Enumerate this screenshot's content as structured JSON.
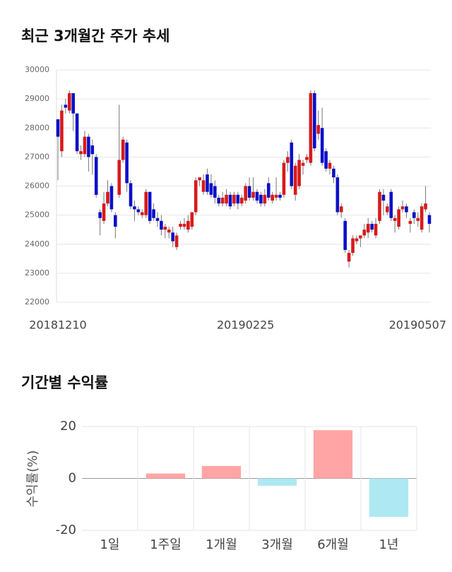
{
  "chart_data": [
    {
      "type": "candlestick",
      "title": "최근 3개월간 주가 추세",
      "categories": [
        "20181210",
        null,
        null,
        null,
        null,
        null,
        null,
        null,
        null,
        null,
        null,
        null,
        null,
        null,
        null,
        null,
        null,
        null,
        null,
        null,
        null,
        null,
        null,
        null,
        null,
        null,
        null,
        null,
        null,
        null,
        null,
        null,
        null,
        null,
        null,
        null,
        null,
        null,
        null,
        null,
        null,
        null,
        null,
        null,
        null,
        null,
        null,
        null,
        null,
        "20190225",
        null,
        null,
        null,
        null,
        null,
        null,
        null,
        null,
        null,
        null,
        null,
        null,
        null,
        null,
        null,
        null,
        null,
        null,
        null,
        null,
        null,
        null,
        null,
        null,
        null,
        null,
        null,
        null,
        null,
        null,
        null,
        null,
        null,
        null,
        null,
        null,
        null,
        null,
        null,
        null,
        null,
        null,
        null,
        null,
        null,
        null,
        null,
        "20190507"
      ],
      "open": [
        28300,
        27200,
        28800,
        28600,
        29200,
        28500,
        27100,
        27100,
        27700,
        27400,
        27000,
        25100,
        24800,
        25400,
        26000,
        25000,
        25700,
        26900,
        27500,
        26100,
        25300,
        25200,
        25000,
        25000,
        25800,
        25200,
        24900,
        24800,
        24500,
        24400,
        24400,
        23900,
        24600,
        24600,
        24500,
        24600,
        25100,
        26200,
        25800,
        26400,
        26100,
        26000,
        25600,
        25400,
        25400,
        25700,
        25400,
        25700,
        25400,
        25500,
        26000,
        25600,
        25800,
        25700,
        25400,
        26100,
        25500,
        25600,
        25700,
        25700,
        26800,
        27500,
        25700,
        26000,
        26700,
        26900,
        26800,
        29200,
        27800,
        28000,
        27200,
        26600,
        26600,
        26300,
        25100,
        24800,
        23400,
        23700,
        24100,
        24200,
        24300,
        24400,
        24700,
        24300,
        24800,
        25700,
        25100,
        25800,
        24800,
        24600,
        25200,
        25300,
        24700,
        25100,
        24800,
        24500,
        25200,
        25000
      ],
      "high": [
        28300,
        28800,
        29000,
        29300,
        29200,
        28500,
        27400,
        27900,
        27800,
        27600,
        27100,
        25200,
        25800,
        26200,
        26100,
        25100,
        28800,
        27700,
        27600,
        26200,
        25500,
        25300,
        25200,
        25900,
        25800,
        25400,
        25100,
        25000,
        24700,
        24600,
        24600,
        24400,
        24800,
        24900,
        25000,
        25100,
        26300,
        26300,
        26400,
        26600,
        26400,
        26200,
        25700,
        25800,
        25900,
        25800,
        25800,
        25800,
        25700,
        26100,
        26300,
        26300,
        25900,
        25800,
        25900,
        26300,
        25800,
        26300,
        25800,
        26900,
        27200,
        27600,
        26800,
        27100,
        26900,
        27100,
        29300,
        29300,
        28600,
        28700,
        27300,
        26900,
        26700,
        26400,
        25400,
        24900,
        23800,
        24300,
        24300,
        24300,
        24700,
        24900,
        24800,
        24900,
        25900,
        25900,
        25400,
        25900,
        25000,
        25300,
        25500,
        25400,
        24900,
        25200,
        25100,
        25400,
        26000,
        25100
      ],
      "low": [
        26200,
        27000,
        28500,
        28500,
        27900,
        27100,
        26900,
        27000,
        26500,
        26400,
        25600,
        24300,
        24700,
        25300,
        25100,
        24200,
        25600,
        26800,
        25800,
        25200,
        24800,
        25000,
        24900,
        24900,
        24700,
        24800,
        24600,
        24300,
        24200,
        24200,
        23900,
        23800,
        24500,
        24500,
        24400,
        24500,
        25000,
        26000,
        25700,
        25700,
        25600,
        25400,
        25300,
        25300,
        25300,
        25200,
        25300,
        25200,
        25300,
        25400,
        25500,
        25500,
        25400,
        25300,
        25300,
        25500,
        25400,
        25500,
        25500,
        25600,
        26500,
        25900,
        25500,
        25900,
        26400,
        26800,
        26700,
        27200,
        27600,
        26700,
        26500,
        26400,
        26100,
        25000,
        24900,
        23700,
        23200,
        23600,
        24000,
        23900,
        24200,
        24200,
        24400,
        24200,
        24700,
        25000,
        25000,
        24800,
        24400,
        24500,
        25100,
        24900,
        24400,
        24700,
        24600,
        24400,
        25100,
        24400
      ],
      "close": [
        27700,
        28600,
        28700,
        29200,
        28500,
        27200,
        27200,
        27700,
        27000,
        27100,
        25700,
        24900,
        25400,
        25800,
        25200,
        24600,
        26900,
        27600,
        26100,
        25300,
        25200,
        25100,
        25100,
        25800,
        24800,
        24900,
        24800,
        24500,
        24600,
        24500,
        24100,
        24300,
        24700,
        24700,
        24800,
        25100,
        26200,
        26300,
        26200,
        25800,
        25700,
        25600,
        25400,
        25600,
        25700,
        25300,
        25700,
        25400,
        25600,
        26000,
        25600,
        25800,
        25500,
        25400,
        25700,
        25600,
        25700,
        25700,
        25600,
        26800,
        27000,
        26000,
        26700,
        26900,
        26800,
        27000,
        29200,
        27300,
        28100,
        26800,
        26600,
        26800,
        26300,
        25100,
        25300,
        23800,
        23700,
        24200,
        24200,
        24300,
        24500,
        24700,
        24500,
        24700,
        25800,
        25500,
        25300,
        24900,
        24900,
        25200,
        25300,
        25100,
        24800,
        24900,
        24900,
        25300,
        25400,
        24700
      ],
      "up_color": "#d71a1a",
      "down_color": "#0a10c8",
      "ylim": [
        22000,
        30000
      ],
      "yticks": [
        22000,
        23000,
        24000,
        25000,
        26000,
        27000,
        28000,
        29000,
        30000
      ],
      "grid": true
    },
    {
      "type": "bar",
      "title": "기간별 수익률",
      "y_label": "수익률(%)",
      "categories": [
        "1일",
        "1주일",
        "1개월",
        "3개월",
        "6개월",
        "1년"
      ],
      "values": [
        0,
        1.9,
        4.8,
        -2.8,
        18.6,
        -14.8
      ],
      "positive_color": "#ffa5a5",
      "negative_color": "#aee8f2",
      "ylim": [
        -20,
        20
      ],
      "yticks": [
        -20,
        0,
        20
      ],
      "grid": true
    }
  ]
}
